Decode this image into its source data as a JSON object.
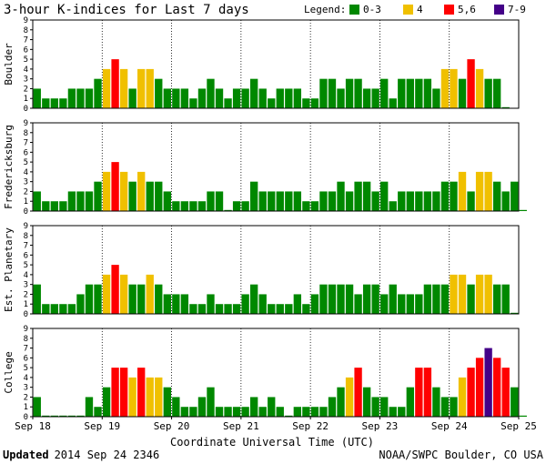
{
  "chart_data": {
    "type": "bar",
    "title": "3-hour K-indices for Last 7 days",
    "legend": {
      "label": "Legend:",
      "entries": [
        {
          "label": "0-3",
          "color": "#008800"
        },
        {
          "label": "4",
          "color": "#f0c000"
        },
        {
          "label": "5,6",
          "color": "#ff0000"
        },
        {
          "label": "7-9",
          "color": "#440088"
        }
      ]
    },
    "xlabel": "Coordinate Universal Time (UTC)",
    "x_ticks": [
      "Sep 18",
      "Sep 19",
      "Sep 20",
      "Sep 21",
      "Sep 22",
      "Sep 23",
      "Sep 24",
      "Sep 25"
    ],
    "y_ticks": [
      "0",
      "1",
      "2",
      "3",
      "4",
      "5",
      "6",
      "7",
      "8",
      "9"
    ],
    "ylim": [
      0,
      9
    ],
    "bins_per_day": 8,
    "panels": [
      {
        "name": "Boulder",
        "values": [
          2,
          1,
          1,
          1,
          2,
          2,
          2,
          3,
          4,
          5,
          4,
          2,
          4,
          4,
          3,
          2,
          2,
          2,
          1,
          2,
          3,
          2,
          1,
          2,
          2,
          3,
          2,
          1,
          2,
          2,
          2,
          1,
          1,
          3,
          3,
          2,
          3,
          3,
          2,
          2,
          3,
          1,
          3,
          3,
          3,
          3,
          2,
          4,
          4,
          3,
          5,
          4,
          3,
          3,
          0
        ]
      },
      {
        "name": "Fredericksburg",
        "values": [
          2,
          1,
          1,
          1,
          2,
          2,
          2,
          3,
          4,
          5,
          4,
          3,
          4,
          3,
          3,
          2,
          1,
          1,
          1,
          1,
          2,
          2,
          0,
          1,
          1,
          3,
          2,
          2,
          2,
          2,
          2,
          1,
          1,
          2,
          2,
          3,
          2,
          3,
          3,
          2,
          3,
          1,
          2,
          2,
          2,
          2,
          2,
          3,
          3,
          4,
          2,
          4,
          4,
          3,
          2,
          3,
          0
        ]
      },
      {
        "name": "Est. Planetary",
        "values": [
          3,
          1,
          1,
          1,
          1,
          2,
          3,
          3,
          4,
          5,
          4,
          3,
          3,
          4,
          3,
          2,
          2,
          2,
          1,
          1,
          2,
          1,
          1,
          1,
          2,
          3,
          2,
          1,
          1,
          1,
          2,
          1,
          2,
          3,
          3,
          3,
          3,
          2,
          3,
          3,
          2,
          3,
          2,
          2,
          2,
          3,
          3,
          3,
          4,
          4,
          3,
          4,
          4,
          3,
          3,
          0
        ]
      },
      {
        "name": "College",
        "values": [
          2,
          0,
          0,
          0,
          0,
          0,
          2,
          1,
          3,
          5,
          5,
          4,
          5,
          4,
          4,
          3,
          2,
          1,
          1,
          2,
          3,
          1,
          1,
          1,
          1,
          2,
          1,
          2,
          1,
          0,
          1,
          1,
          1,
          1,
          2,
          3,
          4,
          5,
          3,
          2,
          2,
          1,
          1,
          3,
          5,
          5,
          3,
          2,
          2,
          4,
          5,
          6,
          7,
          6,
          5,
          3,
          0
        ]
      }
    ]
  },
  "footer": {
    "updated_label": "Updated",
    "updated_time": "2014 Sep 24 2346",
    "credit": "NOAA/SWPC Boulder, CO USA"
  }
}
